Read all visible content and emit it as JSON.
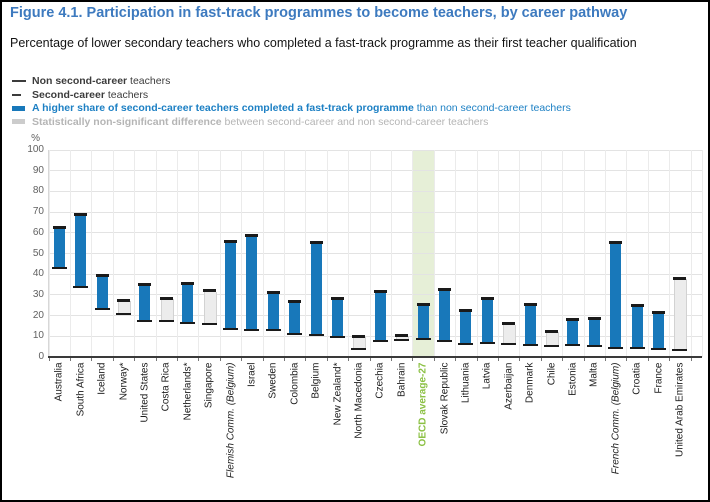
{
  "figure": {
    "title": "Figure 4.1. Participation in fast-track programmes to become teachers, by career pathway",
    "subtitle": "Percentage of lower secondary teachers who completed a fast-track programme as their first teacher qualification",
    "title_color": "#3d7abf"
  },
  "legend": [
    {
      "marker": "long-dash",
      "bold": "Non second-career",
      "rest": " teachers",
      "color": "#3c3c3c"
    },
    {
      "marker": "short-dash",
      "bold": "Second-career",
      "rest": " teachers",
      "color": "#3c3c3c"
    },
    {
      "marker": "blue-bar",
      "bold": "A higher share of second-career teachers completed a fast-track programme",
      "rest": " than non second-career teachers",
      "color": "#1d80c4"
    },
    {
      "marker": "gray-bar",
      "bold": "Statistically non-significant difference",
      "rest": " between second-career and non second-career teachers",
      "color": "#b5b5b5"
    }
  ],
  "chart_data": {
    "type": "range-bar",
    "ylabel": "%",
    "ylim": [
      0,
      100
    ],
    "ytick_step": 10,
    "grid": true,
    "legend_position": "top-left",
    "categories": [
      "Australia",
      "South Africa",
      "Iceland",
      "Norway*",
      "United States",
      "Costa Rica",
      "Netherlands*",
      "Singapore",
      "Flemish Comm. (Belgium)",
      "Israel",
      "Sweden",
      "Colombia",
      "Belgium",
      "New Zealand*",
      "North Macedonia",
      "Czechia",
      "Bahrain",
      "OECD average-27",
      "Slovak Republic",
      "Lithuania",
      "Latvia",
      "Azerbaijan",
      "Denmark",
      "Chile",
      "Estonia",
      "Malta",
      "French Comm. (Belgium)",
      "Croatia",
      "France",
      "United Arab Emirates"
    ],
    "series": [
      {
        "name": "Non second-career teachers",
        "values": [
          43,
          34,
          23.5,
          21,
          17.5,
          17.5,
          16.5,
          16,
          14,
          13.5,
          13.5,
          11.5,
          11,
          10,
          4,
          8,
          8.5,
          9,
          8,
          6.5,
          7,
          6.5,
          6,
          5.5,
          6,
          5.5,
          4.5,
          4.5,
          4,
          3.5
        ]
      },
      {
        "name": "Second-career teachers",
        "values": [
          62,
          68.5,
          39,
          27,
          34.5,
          28,
          35,
          31.5,
          55.5,
          58,
          30.5,
          26.5,
          55,
          28,
          9.5,
          31,
          10,
          25,
          32,
          22,
          28,
          15.5,
          25,
          12,
          17.5,
          18,
          55,
          24.5,
          21,
          37.5
        ]
      }
    ],
    "significant_higher": [
      true,
      true,
      true,
      false,
      true,
      false,
      true,
      false,
      true,
      true,
      true,
      true,
      true,
      true,
      false,
      true,
      false,
      true,
      true,
      true,
      true,
      false,
      true,
      false,
      true,
      true,
      true,
      true,
      true,
      false
    ],
    "italic_categories": [
      "Flemish Comm. (Belgium)",
      "French Comm. (Belgium)"
    ],
    "highlight_category": "OECD average-27",
    "colors": {
      "significant_bar": "#1878ba",
      "non_significant_bar": "#ececec",
      "range_tick": "#1a1a1a",
      "highlight_band": "#e6efd7",
      "highlight_label": "#8bc043"
    }
  }
}
